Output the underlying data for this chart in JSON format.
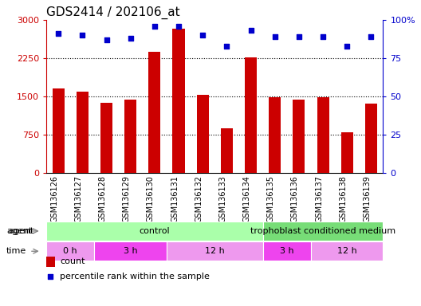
{
  "title": "GDS2414 / 202106_at",
  "samples": [
    "GSM136126",
    "GSM136127",
    "GSM136128",
    "GSM136129",
    "GSM136130",
    "GSM136131",
    "GSM136132",
    "GSM136133",
    "GSM136134",
    "GSM136135",
    "GSM136136",
    "GSM136137",
    "GSM136138",
    "GSM136139"
  ],
  "counts": [
    1650,
    1600,
    1380,
    1430,
    2380,
    2820,
    1530,
    870,
    2260,
    1490,
    1430,
    1490,
    800,
    1360
  ],
  "percentiles": [
    91,
    90,
    87,
    88,
    96,
    96,
    90,
    83,
    93,
    89,
    89,
    89,
    83,
    89
  ],
  "bar_color": "#cc0000",
  "dot_color": "#0000cc",
  "ylim_left": [
    0,
    3000
  ],
  "ylim_right": [
    0,
    100
  ],
  "yticks_left": [
    0,
    750,
    1500,
    2250,
    3000
  ],
  "yticks_right": [
    0,
    25,
    50,
    75,
    100
  ],
  "background_color": "#ffffff",
  "agent_segments": [
    {
      "label": "control",
      "start": 0,
      "end": 9,
      "color": "#aaffaa"
    },
    {
      "label": "trophoblast conditioned medium",
      "start": 9,
      "end": 14,
      "color": "#77dd77"
    }
  ],
  "time_segments": [
    {
      "label": "0 h",
      "start": 0,
      "end": 2,
      "color": "#ee99ee"
    },
    {
      "label": "3 h",
      "start": 2,
      "end": 5,
      "color": "#ee44ee"
    },
    {
      "label": "12 h",
      "start": 5,
      "end": 9,
      "color": "#ee99ee"
    },
    {
      "label": "3 h",
      "start": 9,
      "end": 11,
      "color": "#ee44ee"
    },
    {
      "label": "12 h",
      "start": 11,
      "end": 14,
      "color": "#ee99ee"
    }
  ],
  "bar_width": 0.5,
  "x_tick_fontsize": 7,
  "y_tick_fontsize": 8,
  "title_fontsize": 11,
  "legend_fontsize": 8,
  "annotation_fontsize": 8,
  "segment_label_fontsize": 8
}
